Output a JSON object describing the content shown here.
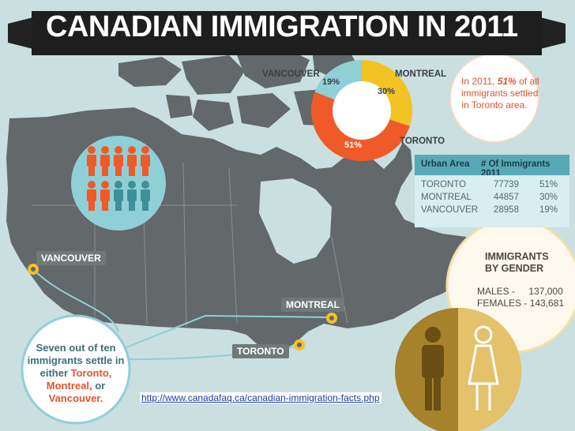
{
  "title": "CANADIAN IMMIGRATION IN 2011",
  "colors": {
    "accent_orange": "#f05a28",
    "teal": "#8fcfd6",
    "yellow": "#f3c223",
    "map_gray": "#63686a",
    "gold": "#a6822c",
    "table_header": "#57a9b8"
  },
  "chart_data": [
    {
      "type": "pie",
      "categories": [
        "TORONTO",
        "MONTREAL",
        "VANCOUVER"
      ],
      "values": [
        51,
        30,
        19
      ],
      "value_labels": [
        "51%",
        "30%",
        "19%"
      ],
      "colors": [
        "#f05a28",
        "#f3c223",
        "#8fcfd6"
      ]
    },
    {
      "type": "table",
      "columns": [
        "Urban Area",
        "# Of Immigrants 2011",
        ""
      ],
      "rows": [
        [
          "TORONTO",
          "77739",
          "51%"
        ],
        [
          "MONTREAL",
          "44857",
          "30%"
        ],
        [
          "VANCOUVER",
          "28958",
          "19%"
        ]
      ]
    }
  ],
  "note": {
    "line1": "In 2011,",
    "highlight": "51%",
    "line1_end": "of all",
    "line2": "immigrants settled",
    "line3": "in Toronto area."
  },
  "map_labels": {
    "vancouver": "VANCOUVER",
    "montreal": "MONTREAL",
    "toronto": "TORONTO"
  },
  "pictogram": {
    "total": 10,
    "highlighted": 7,
    "icon": "person-icon"
  },
  "gender": {
    "title_line1": "IMMIGRANTS",
    "title_line2": "BY GENDER",
    "males_label": "MALES -",
    "males_value": "137,000",
    "females_label": "FEMALES -",
    "females_value": "143,681",
    "male_icon": "male-icon",
    "female_icon": "female-icon"
  },
  "bubble": {
    "text1": "Seven out of ten",
    "text2": "immigrants settle in",
    "text3": "either",
    "city1": "Toronto,",
    "city2": "Montreal,",
    "or": "or",
    "city3": "Vancouver."
  },
  "source_url": "http://www.canadafaq.ca/canadian-immigration-facts.php"
}
